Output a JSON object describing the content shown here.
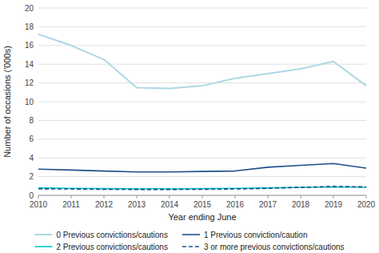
{
  "chart_data": {
    "type": "line",
    "x": [
      2010,
      2011,
      2012,
      2013,
      2014,
      2015,
      2016,
      2017,
      2018,
      2019,
      2020
    ],
    "series": [
      {
        "name": "0 Previous convictions/cautions",
        "color": "#add8e6",
        "line_style": "solid",
        "values": [
          17.2,
          16.0,
          14.5,
          11.5,
          11.4,
          11.7,
          12.5,
          13.0,
          13.5,
          14.3,
          11.7
        ]
      },
      {
        "name": "1 Previous conviction/caution",
        "color": "#1f4e8c",
        "line_style": "solid",
        "values": [
          2.8,
          2.7,
          2.6,
          2.5,
          2.5,
          2.55,
          2.6,
          3.0,
          3.2,
          3.4,
          2.9
        ]
      },
      {
        "name": "2 Previous convictions/cautions",
        "color": "#00c8c8",
        "line_style": "solid",
        "values": [
          0.8,
          0.75,
          0.72,
          0.7,
          0.7,
          0.72,
          0.75,
          0.8,
          0.85,
          0.9,
          0.85
        ]
      },
      {
        "name": "3 or more previous convictions/cautions",
        "color": "#1f4e8c",
        "line_style": "dashed",
        "values": [
          0.7,
          0.68,
          0.65,
          0.63,
          0.63,
          0.65,
          0.68,
          0.75,
          0.85,
          0.95,
          0.9
        ]
      }
    ],
    "xlabel": "Year ending June",
    "ylabel": "Number of occasions  ('000s)",
    "xlim": [
      2010,
      2020
    ],
    "xticks": [
      2010,
      2011,
      2012,
      2013,
      2014,
      2015,
      2016,
      2017,
      2018,
      2019,
      2020
    ],
    "ylim": [
      0,
      20
    ],
    "yticks": [
      0,
      2,
      4,
      6,
      8,
      10,
      12,
      14,
      16,
      18,
      20
    ],
    "grid": true,
    "legend": "bottom"
  }
}
